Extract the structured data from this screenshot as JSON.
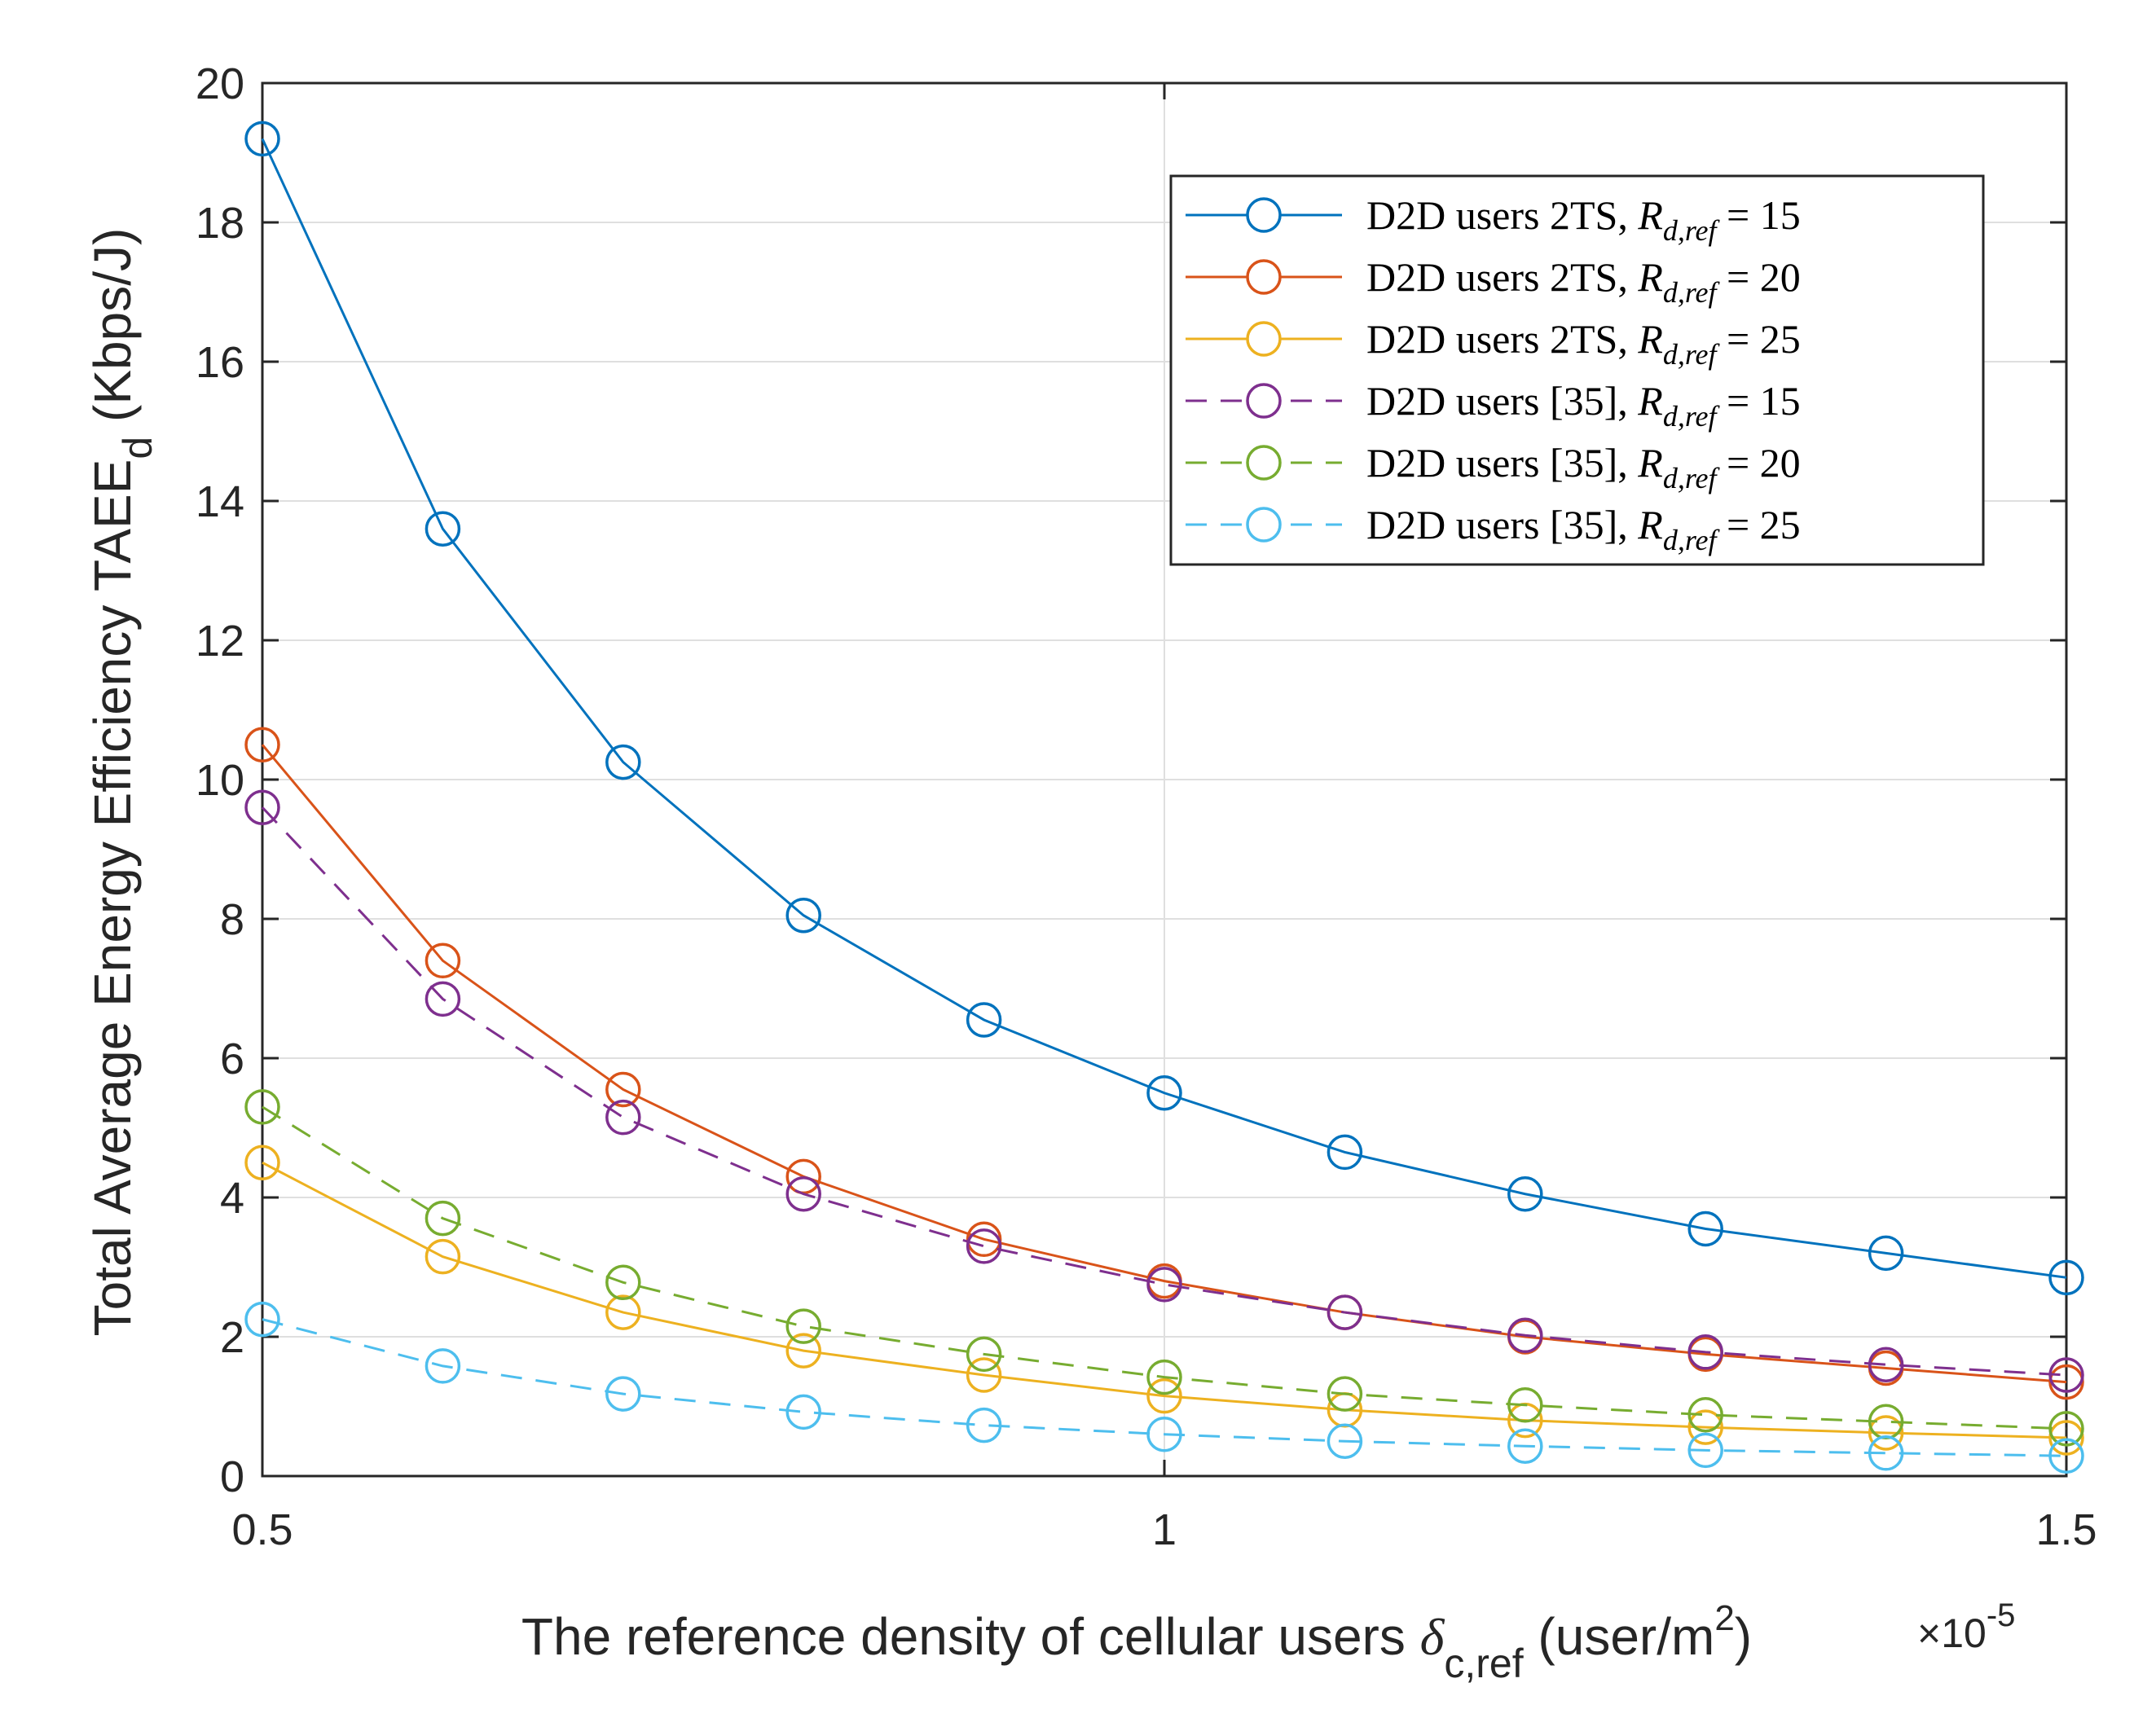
{
  "chart_data": {
    "type": "line",
    "title": "",
    "xlabel": {
      "main": "The reference density of cellular users ",
      "symbol": "δ",
      "subscript": "c,ref",
      "unit_open": " (user/m",
      "unit_sup": "2",
      "unit_close": ")"
    },
    "x_multiplier": {
      "base": "×10",
      "exponent": "-5"
    },
    "ylabel": {
      "main": "Total Average Energy Efficiency TAEE",
      "subscript": "d",
      "unit": " (Kbps/J)"
    },
    "xlim": [
      0.5,
      1.5
    ],
    "ylim": [
      0,
      20
    ],
    "xticks": [
      0.5,
      1,
      1.5
    ],
    "xtick_labels": [
      "0.5",
      "1",
      "1.5"
    ],
    "yticks": [
      0,
      2,
      4,
      6,
      8,
      10,
      12,
      14,
      16,
      18,
      20
    ],
    "ytick_labels": [
      "0",
      "2",
      "4",
      "6",
      "8",
      "10",
      "12",
      "14",
      "16",
      "18",
      "20"
    ],
    "grid": true,
    "legend_position": "top-right",
    "x": [
      0.5,
      0.6,
      0.7,
      0.8,
      0.9,
      1.0,
      1.1,
      1.2,
      1.3,
      1.4,
      1.5
    ],
    "series": [
      {
        "name": "D2D users 2TS",
        "rparam": "15",
        "label_text": "D2D users 2TS,",
        "value_text": "= 15",
        "color": "#0072BD",
        "dash": false,
        "values": [
          19.2,
          13.6,
          10.25,
          8.05,
          6.55,
          5.5,
          4.65,
          4.05,
          3.55,
          3.2,
          2.85
        ]
      },
      {
        "name": "D2D users 2TS",
        "rparam": "20",
        "label_text": "D2D users 2TS,",
        "value_text": "= 20",
        "color": "#D95319",
        "dash": false,
        "values": [
          10.5,
          7.4,
          5.55,
          4.3,
          3.4,
          2.8,
          2.35,
          2.0,
          1.75,
          1.55,
          1.35
        ]
      },
      {
        "name": "D2D users 2TS",
        "rparam": "25",
        "label_text": "D2D users 2TS,",
        "value_text": "= 25",
        "color": "#EDB120",
        "dash": false,
        "values": [
          4.5,
          3.15,
          2.35,
          1.8,
          1.45,
          1.15,
          0.95,
          0.8,
          0.7,
          0.62,
          0.55
        ]
      },
      {
        "name": "D2D users [35]",
        "rparam": "15",
        "label_text": "D2D users [35],",
        "value_text": "= 15",
        "color": "#7E2F8E",
        "dash": true,
        "values": [
          9.6,
          6.85,
          5.15,
          4.05,
          3.3,
          2.75,
          2.35,
          2.02,
          1.78,
          1.6,
          1.45
        ]
      },
      {
        "name": "D2D users [35]",
        "rparam": "20",
        "label_text": "D2D users [35],",
        "value_text": "= 20",
        "color": "#77AC30",
        "dash": true,
        "values": [
          5.3,
          3.7,
          2.78,
          2.15,
          1.75,
          1.42,
          1.18,
          1.02,
          0.88,
          0.78,
          0.68
        ]
      },
      {
        "name": "D2D users [35]",
        "rparam": "25",
        "label_text": "D2D users [35],",
        "value_text": "= 25",
        "color": "#4DBEEE",
        "dash": true,
        "values": [
          2.25,
          1.58,
          1.18,
          0.92,
          0.73,
          0.6,
          0.5,
          0.43,
          0.37,
          0.33,
          0.29
        ]
      }
    ],
    "legend_symbol": {
      "R": "R",
      "sub": "d,ref"
    }
  }
}
